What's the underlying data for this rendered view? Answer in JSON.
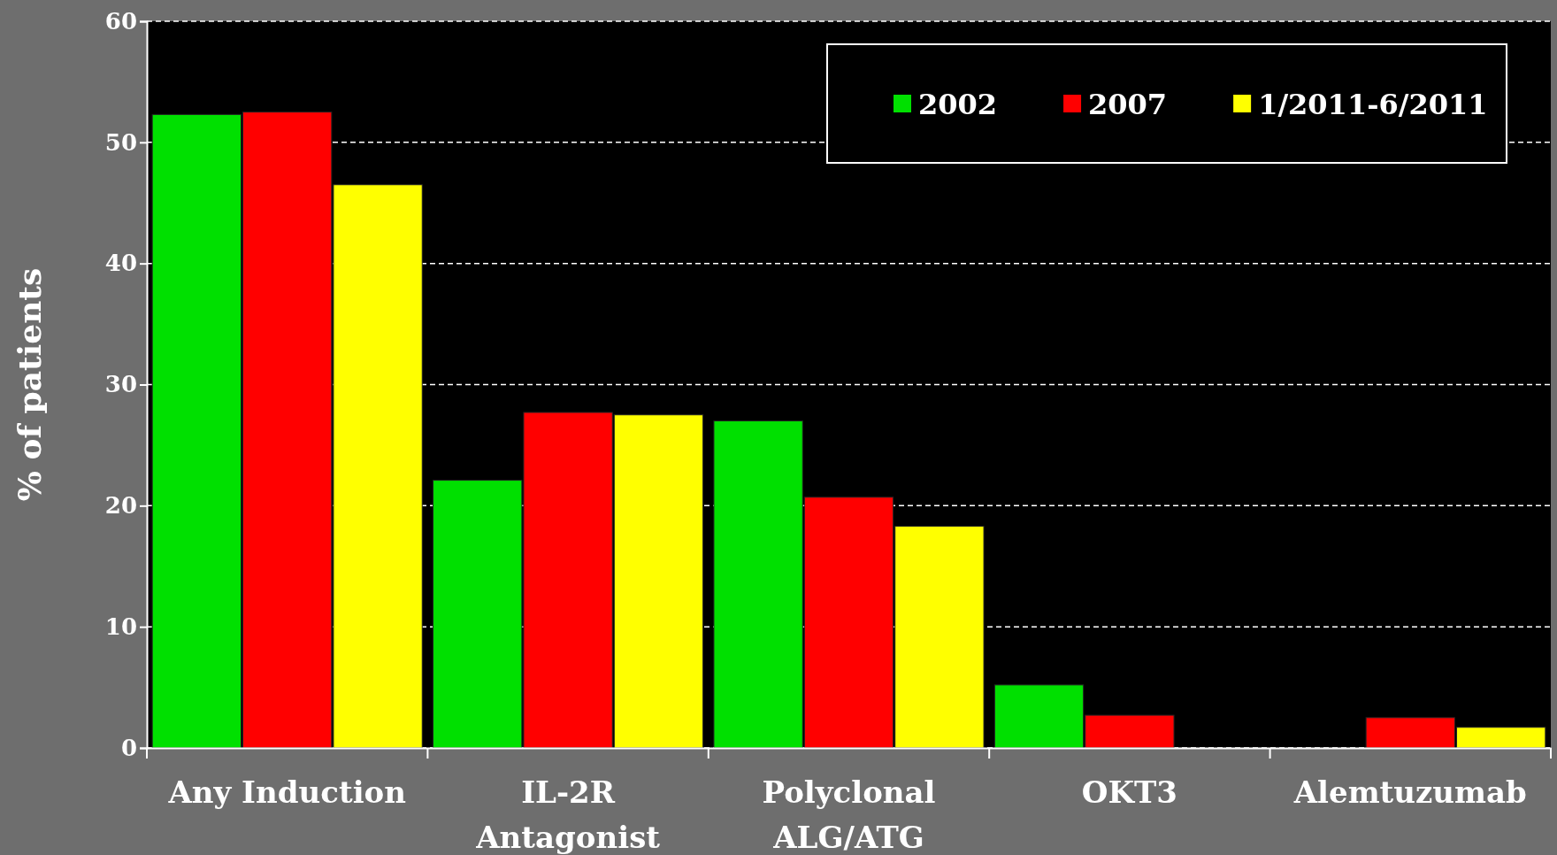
{
  "chart_data": {
    "type": "bar",
    "ylabel": "% of patients",
    "categories": [
      "Any Induction",
      "IL-2R Antagonist",
      "Polyclonal ALG/ATG",
      "OKT3",
      "Alemtuzumab"
    ],
    "series": [
      {
        "name": "2002",
        "color": "#00e000",
        "values": [
          52.3,
          22.1,
          27.0,
          5.2,
          null
        ]
      },
      {
        "name": "2007",
        "color": "#ff0000",
        "values": [
          52.5,
          27.7,
          20.7,
          2.7,
          2.5
        ]
      },
      {
        "name": "1/2011-6/2011",
        "color": "#ffff00",
        "values": [
          46.5,
          27.5,
          18.3,
          null,
          1.7
        ]
      }
    ],
    "ylim": [
      0,
      60
    ],
    "yticks": [
      0,
      10,
      20,
      30,
      40,
      50,
      60
    ],
    "grid": "y",
    "legend": "top right"
  }
}
